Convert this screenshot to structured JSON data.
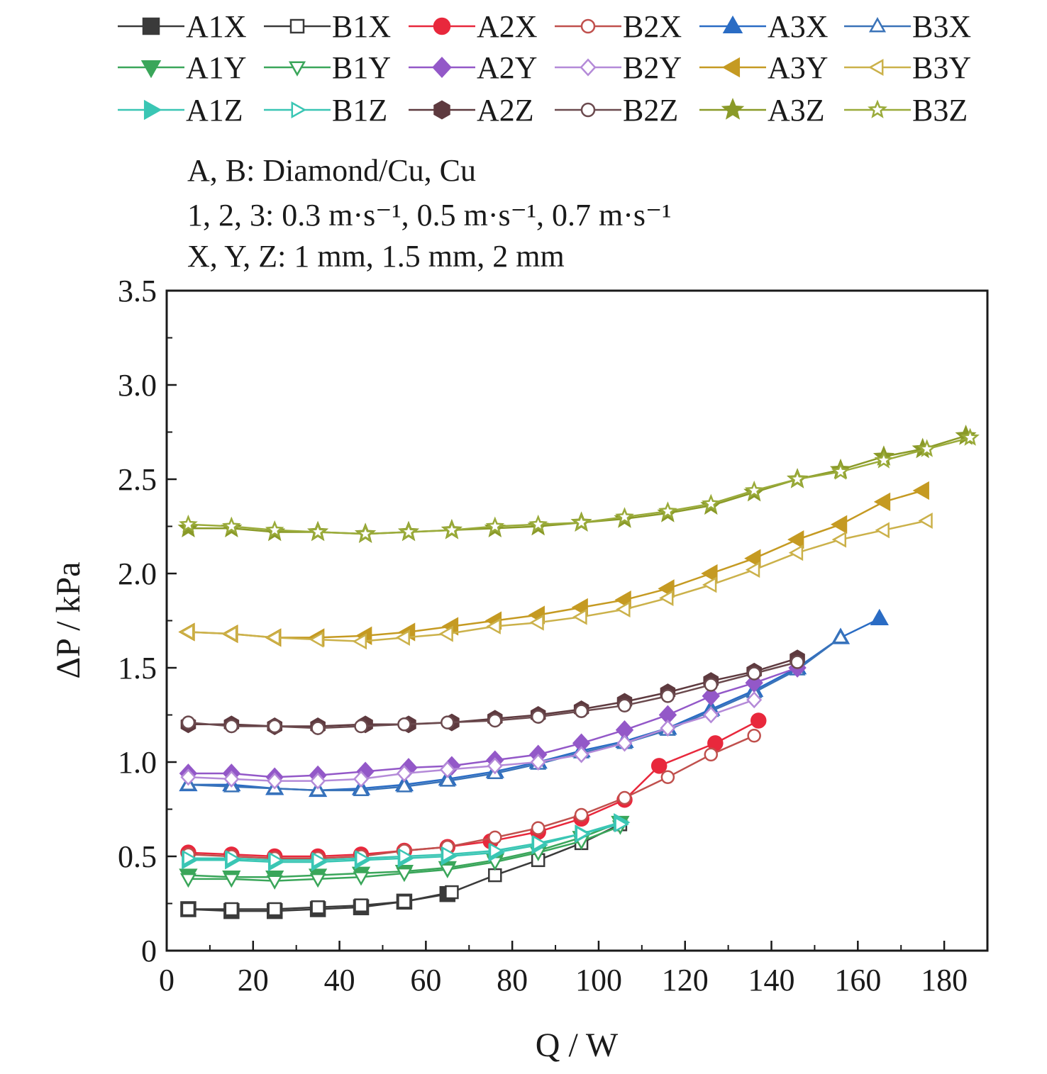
{
  "chart_data": {
    "type": "line",
    "xlabel": "Q / W",
    "ylabel": "ΔP / kPa",
    "xlim": [
      0,
      190
    ],
    "ylim": [
      0,
      3.5
    ],
    "x_ticks": [
      "0",
      "20",
      "40",
      "60",
      "80",
      "100",
      "120",
      "140",
      "160",
      "180"
    ],
    "y_ticks": [
      "0",
      "0.5",
      "1.0",
      "1.5",
      "2.0",
      "2.5",
      "3.0",
      "3.5"
    ],
    "grid": false,
    "legend_position": "top",
    "legend_columns": 6,
    "annotations": [
      "A, B: Diamond/Cu, Cu",
      "1, 2, 3: 0.3 m·s⁻¹, 0.5 m·s⁻¹, 0.7 m·s⁻¹",
      "X, Y, Z: 1 mm, 1.5 mm, 2 mm"
    ],
    "series": [
      {
        "name": "A1X",
        "color": "#3a3a3a",
        "marker": "square",
        "filled": true,
        "points": [
          [
            5,
            0.22
          ],
          [
            15,
            0.21
          ],
          [
            25,
            0.21
          ],
          [
            35,
            0.22
          ],
          [
            45,
            0.23
          ],
          [
            55,
            0.26
          ],
          [
            65,
            0.3
          ]
        ]
      },
      {
        "name": "B1X",
        "color": "#3a3a3a",
        "marker": "square",
        "filled": false,
        "points": [
          [
            5,
            0.22
          ],
          [
            15,
            0.22
          ],
          [
            25,
            0.22
          ],
          [
            35,
            0.23
          ],
          [
            45,
            0.24
          ],
          [
            55,
            0.26
          ],
          [
            66,
            0.31
          ],
          [
            76,
            0.4
          ],
          [
            86,
            0.48
          ],
          [
            96,
            0.57
          ],
          [
            105,
            0.67
          ]
        ]
      },
      {
        "name": "A2X",
        "color": "#e8283c",
        "marker": "circle",
        "filled": true,
        "points": [
          [
            5,
            0.52
          ],
          [
            15,
            0.51
          ],
          [
            25,
            0.5
          ],
          [
            35,
            0.5
          ],
          [
            45,
            0.51
          ],
          [
            55,
            0.53
          ],
          [
            65,
            0.55
          ],
          [
            75,
            0.58
          ],
          [
            86,
            0.63
          ],
          [
            96,
            0.7
          ],
          [
            106,
            0.8
          ],
          [
            114,
            0.98
          ],
          [
            127,
            1.1
          ],
          [
            137,
            1.22
          ]
        ]
      },
      {
        "name": "B2X",
        "color": "#c0504d",
        "marker": "circle",
        "filled": false,
        "points": [
          [
            5,
            0.51
          ],
          [
            15,
            0.5
          ],
          [
            25,
            0.49
          ],
          [
            35,
            0.49
          ],
          [
            45,
            0.5
          ],
          [
            55,
            0.53
          ],
          [
            65,
            0.55
          ],
          [
            76,
            0.6
          ],
          [
            86,
            0.65
          ],
          [
            96,
            0.72
          ],
          [
            106,
            0.81
          ],
          [
            116,
            0.92
          ],
          [
            126,
            1.04
          ],
          [
            136,
            1.14
          ]
        ]
      },
      {
        "name": "A3X",
        "color": "#2a6cc4",
        "marker": "triangle-up",
        "filled": true,
        "points": [
          [
            5,
            0.88
          ],
          [
            15,
            0.88
          ],
          [
            25,
            0.86
          ],
          [
            35,
            0.85
          ],
          [
            45,
            0.86
          ],
          [
            55,
            0.88
          ],
          [
            65,
            0.91
          ],
          [
            76,
            0.95
          ],
          [
            86,
            1.0
          ],
          [
            96,
            1.06
          ],
          [
            106,
            1.11
          ],
          [
            116,
            1.18
          ],
          [
            126,
            1.28
          ],
          [
            136,
            1.38
          ],
          [
            146,
            1.5
          ],
          [
            156,
            1.66
          ],
          [
            165,
            1.76
          ]
        ]
      },
      {
        "name": "B3X",
        "color": "#3a73b8",
        "marker": "triangle-up",
        "filled": false,
        "points": [
          [
            5,
            0.88
          ],
          [
            15,
            0.87
          ],
          [
            25,
            0.86
          ],
          [
            35,
            0.85
          ],
          [
            45,
            0.85
          ],
          [
            55,
            0.87
          ],
          [
            65,
            0.9
          ],
          [
            76,
            0.94
          ],
          [
            86,
            0.99
          ],
          [
            96,
            1.05
          ],
          [
            106,
            1.1
          ],
          [
            116,
            1.17
          ],
          [
            126,
            1.27
          ],
          [
            136,
            1.37
          ],
          [
            146,
            1.49
          ],
          [
            156,
            1.66
          ]
        ]
      },
      {
        "name": "A1Y",
        "color": "#3aa65a",
        "marker": "triangle-down",
        "filled": true,
        "points": [
          [
            5,
            0.4
          ],
          [
            15,
            0.39
          ],
          [
            25,
            0.39
          ],
          [
            35,
            0.4
          ],
          [
            45,
            0.41
          ],
          [
            55,
            0.42
          ],
          [
            65,
            0.44
          ],
          [
            76,
            0.48
          ],
          [
            86,
            0.53
          ],
          [
            96,
            0.6
          ],
          [
            105,
            0.68
          ]
        ]
      },
      {
        "name": "B1Y",
        "color": "#3aa65a",
        "marker": "triangle-down",
        "filled": false,
        "points": [
          [
            5,
            0.38
          ],
          [
            15,
            0.38
          ],
          [
            25,
            0.37
          ],
          [
            35,
            0.38
          ],
          [
            45,
            0.39
          ],
          [
            55,
            0.41
          ],
          [
            65,
            0.43
          ],
          [
            76,
            0.47
          ],
          [
            86,
            0.52
          ],
          [
            96,
            0.58
          ],
          [
            105,
            0.66
          ]
        ]
      },
      {
        "name": "A2Y",
        "color": "#9358c8",
        "marker": "diamond",
        "filled": true,
        "points": [
          [
            5,
            0.94
          ],
          [
            15,
            0.94
          ],
          [
            25,
            0.92
          ],
          [
            35,
            0.93
          ],
          [
            46,
            0.95
          ],
          [
            56,
            0.97
          ],
          [
            66,
            0.98
          ],
          [
            76,
            1.01
          ],
          [
            86,
            1.04
          ],
          [
            96,
            1.1
          ],
          [
            106,
            1.17
          ],
          [
            116,
            1.25
          ],
          [
            126,
            1.35
          ],
          [
            136,
            1.42
          ],
          [
            146,
            1.5
          ]
        ]
      },
      {
        "name": "B2Y",
        "color": "#b48ad8",
        "marker": "diamond",
        "filled": false,
        "points": [
          [
            5,
            0.92
          ],
          [
            15,
            0.91
          ],
          [
            25,
            0.9
          ],
          [
            35,
            0.9
          ],
          [
            45,
            0.91
          ],
          [
            55,
            0.94
          ],
          [
            65,
            0.96
          ],
          [
            76,
            0.98
          ],
          [
            86,
            1.0
          ],
          [
            96,
            1.04
          ],
          [
            106,
            1.1
          ],
          [
            116,
            1.18
          ],
          [
            126,
            1.25
          ],
          [
            136,
            1.33
          ]
        ]
      },
      {
        "name": "A3Y",
        "color": "#c59a22",
        "marker": "triangle-left",
        "filled": true,
        "points": [
          [
            5,
            1.69
          ],
          [
            15,
            1.68
          ],
          [
            25,
            1.66
          ],
          [
            35,
            1.66
          ],
          [
            46,
            1.67
          ],
          [
            56,
            1.69
          ],
          [
            66,
            1.72
          ],
          [
            76,
            1.75
          ],
          [
            86,
            1.78
          ],
          [
            96,
            1.82
          ],
          [
            106,
            1.86
          ],
          [
            116,
            1.92
          ],
          [
            126,
            2.0
          ],
          [
            136,
            2.08
          ],
          [
            146,
            2.18
          ],
          [
            156,
            2.26
          ],
          [
            166,
            2.38
          ],
          [
            175,
            2.44
          ]
        ]
      },
      {
        "name": "B3Y",
        "color": "#cbb14a",
        "marker": "triangle-left",
        "filled": false,
        "points": [
          [
            5,
            1.69
          ],
          [
            15,
            1.68
          ],
          [
            25,
            1.66
          ],
          [
            35,
            1.65
          ],
          [
            45,
            1.64
          ],
          [
            55,
            1.66
          ],
          [
            65,
            1.68
          ],
          [
            76,
            1.72
          ],
          [
            86,
            1.74
          ],
          [
            96,
            1.77
          ],
          [
            106,
            1.81
          ],
          [
            116,
            1.87
          ],
          [
            126,
            1.94
          ],
          [
            136,
            2.02
          ],
          [
            146,
            2.11
          ],
          [
            156,
            2.18
          ],
          [
            166,
            2.23
          ],
          [
            176,
            2.28
          ]
        ]
      },
      {
        "name": "A1Z",
        "color": "#3ac6b4",
        "marker": "triangle-right",
        "filled": true,
        "points": [
          [
            5,
            0.48
          ],
          [
            15,
            0.48
          ],
          [
            25,
            0.47
          ],
          [
            35,
            0.47
          ],
          [
            45,
            0.48
          ],
          [
            55,
            0.49
          ],
          [
            65,
            0.5
          ],
          [
            76,
            0.52
          ],
          [
            86,
            0.56
          ],
          [
            96,
            0.62
          ],
          [
            105,
            0.68
          ]
        ]
      },
      {
        "name": "B1Z",
        "color": "#3ac6b4",
        "marker": "triangle-right",
        "filled": false,
        "points": [
          [
            5,
            0.49
          ],
          [
            15,
            0.49
          ],
          [
            25,
            0.48
          ],
          [
            35,
            0.48
          ],
          [
            45,
            0.49
          ],
          [
            55,
            0.5
          ],
          [
            65,
            0.51
          ],
          [
            76,
            0.53
          ],
          [
            86,
            0.57
          ],
          [
            96,
            0.62
          ],
          [
            105,
            0.67
          ]
        ]
      },
      {
        "name": "A2Z",
        "color": "#5e3a3f",
        "marker": "hexagon",
        "filled": true,
        "points": [
          [
            5,
            1.2
          ],
          [
            15,
            1.2
          ],
          [
            25,
            1.19
          ],
          [
            35,
            1.19
          ],
          [
            46,
            1.2
          ],
          [
            56,
            1.2
          ],
          [
            66,
            1.21
          ],
          [
            76,
            1.23
          ],
          [
            86,
            1.25
          ],
          [
            96,
            1.28
          ],
          [
            106,
            1.32
          ],
          [
            116,
            1.37
          ],
          [
            126,
            1.43
          ],
          [
            136,
            1.48
          ],
          [
            146,
            1.55
          ]
        ]
      },
      {
        "name": "B2Z",
        "color": "#6b4a4e",
        "marker": "circle",
        "filled": false,
        "points": [
          [
            5,
            1.21
          ],
          [
            15,
            1.19
          ],
          [
            25,
            1.19
          ],
          [
            35,
            1.18
          ],
          [
            45,
            1.19
          ],
          [
            55,
            1.2
          ],
          [
            65,
            1.21
          ],
          [
            76,
            1.22
          ],
          [
            86,
            1.24
          ],
          [
            96,
            1.27
          ],
          [
            106,
            1.3
          ],
          [
            116,
            1.35
          ],
          [
            126,
            1.41
          ],
          [
            136,
            1.47
          ],
          [
            146,
            1.53
          ]
        ]
      },
      {
        "name": "A3Z",
        "color": "#8a9a28",
        "marker": "star",
        "filled": true,
        "points": [
          [
            5,
            2.24
          ],
          [
            15,
            2.24
          ],
          [
            25,
            2.22
          ],
          [
            35,
            2.22
          ],
          [
            46,
            2.21
          ],
          [
            56,
            2.22
          ],
          [
            66,
            2.23
          ],
          [
            76,
            2.24
          ],
          [
            86,
            2.25
          ],
          [
            96,
            2.27
          ],
          [
            106,
            2.29
          ],
          [
            116,
            2.32
          ],
          [
            126,
            2.36
          ],
          [
            136,
            2.43
          ],
          [
            146,
            2.5
          ],
          [
            156,
            2.55
          ],
          [
            166,
            2.62
          ],
          [
            175,
            2.66
          ],
          [
            185,
            2.73
          ]
        ]
      },
      {
        "name": "B3Z",
        "color": "#9aab3a",
        "marker": "star",
        "filled": false,
        "points": [
          [
            5,
            2.26
          ],
          [
            15,
            2.25
          ],
          [
            25,
            2.23
          ],
          [
            35,
            2.22
          ],
          [
            46,
            2.21
          ],
          [
            56,
            2.22
          ],
          [
            66,
            2.23
          ],
          [
            76,
            2.25
          ],
          [
            86,
            2.26
          ],
          [
            96,
            2.27
          ],
          [
            106,
            2.3
          ],
          [
            116,
            2.33
          ],
          [
            126,
            2.37
          ],
          [
            136,
            2.44
          ],
          [
            146,
            2.5
          ],
          [
            156,
            2.54
          ],
          [
            166,
            2.6
          ],
          [
            176,
            2.66
          ],
          [
            186,
            2.72
          ]
        ]
      }
    ]
  }
}
